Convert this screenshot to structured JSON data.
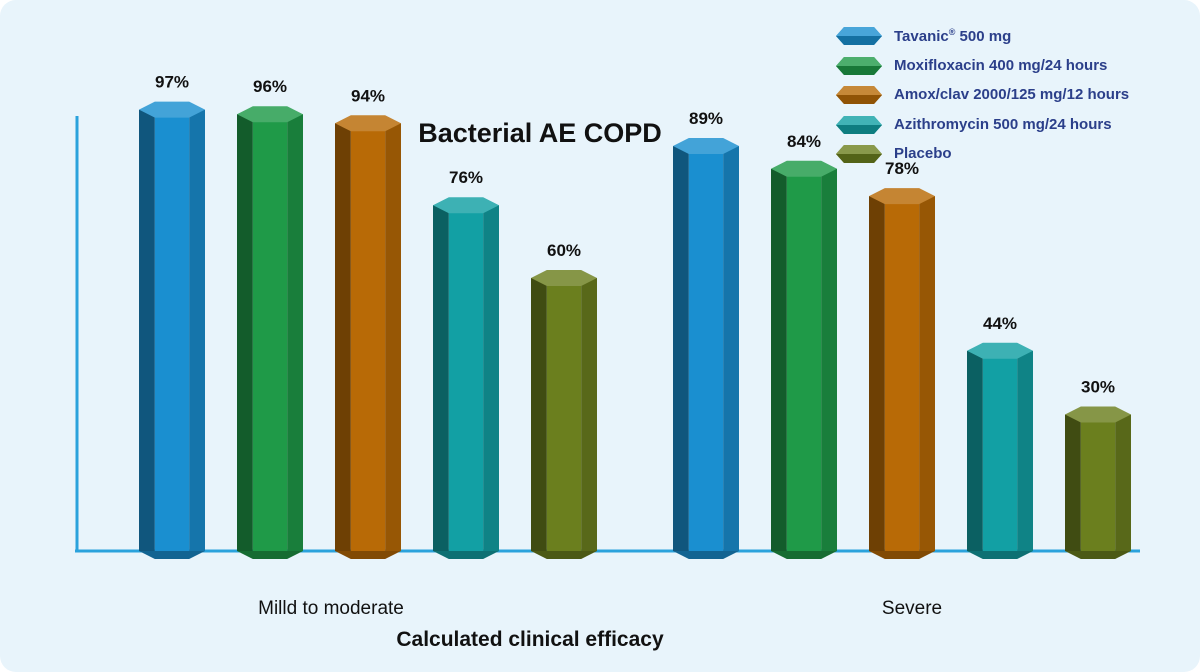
{
  "chart_data": {
    "type": "bar",
    "title": "Bacterial AE COPD",
    "xlabel": "Calculated clinical efficacy",
    "ylabel": "",
    "ylim": [
      0,
      100
    ],
    "grid": false,
    "legend_position": "top-right",
    "categories": [
      "Milld to moderate",
      "Severe"
    ],
    "series": [
      {
        "name": "Tavanic® 500 mg",
        "color": "#1a8fd0",
        "values": [
          97,
          89
        ]
      },
      {
        "name": "Moxifloxacin 400 mg/24 hours",
        "color": "#1f9a48",
        "values": [
          96,
          84
        ]
      },
      {
        "name": "Amox/clav 2000/125 mg/12 hours",
        "color": "#b86a06",
        "values": [
          94,
          78
        ]
      },
      {
        "name": "Azithromycin 500 mg/24 hours",
        "color": "#12a0a4",
        "values": [
          76,
          44
        ]
      },
      {
        "name": "Placebo",
        "color": "#6b7f1e",
        "values": [
          60,
          30
        ]
      }
    ],
    "data_labels": [
      [
        "97%",
        "96%",
        "94%",
        "76%",
        "60%"
      ],
      [
        "89%",
        "84%",
        "78%",
        "44%",
        "30%"
      ]
    ]
  },
  "legend": {
    "items": [
      {
        "text": "Tavanic",
        "mark": "®",
        "suffix": " 500 mg"
      },
      {
        "text": "Moxifloxacin 400 mg/24 hours",
        "mark": "",
        "suffix": ""
      },
      {
        "text": "Amox/clav 2000/125 mg/12 hours",
        "mark": "",
        "suffix": ""
      },
      {
        "text": "Azithromycin 500 mg/24 hours",
        "mark": "",
        "suffix": ""
      },
      {
        "text": "Placebo",
        "mark": "",
        "suffix": ""
      }
    ]
  },
  "colors": {
    "axis": "#2aa2dc",
    "background": "#e8f4fb",
    "text": "#111111",
    "legend_text": "#2b3f8a"
  }
}
